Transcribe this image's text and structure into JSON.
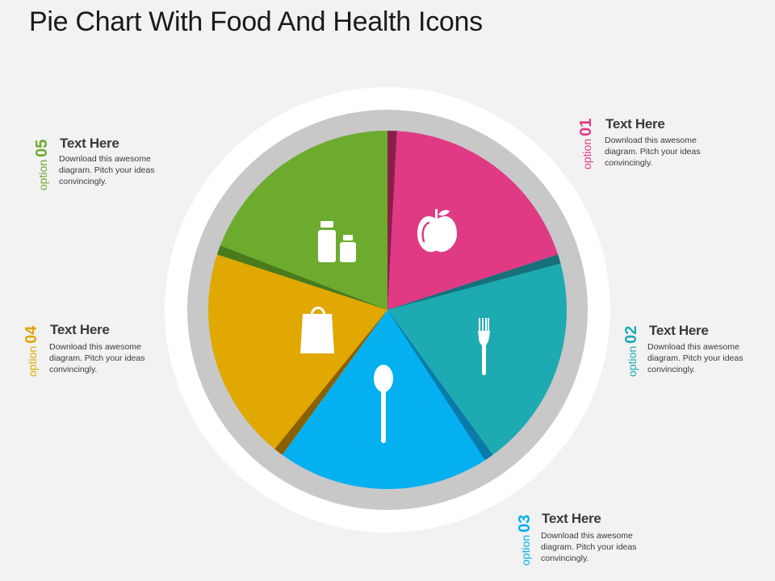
{
  "title": "Pie Chart With Food And Health Icons",
  "colors": {
    "background": "#f2f2f2",
    "ring_outer": "#ffffff",
    "ring_inner": "#c8c8c8",
    "icon": "#ffffff"
  },
  "slices": [
    {
      "id": "01",
      "color": "#e03a84",
      "shade": "#8b1f4c",
      "icon": "apple-icon"
    },
    {
      "id": "02",
      "color": "#1eaab1",
      "shade": "#17707a",
      "icon": "fork-icon"
    },
    {
      "id": "03",
      "color": "#04b0ef",
      "shade": "#0a7aa8",
      "icon": "spoon-icon"
    },
    {
      "id": "04",
      "color": "#e0a800",
      "shade": "#8a6000",
      "icon": "shopping-bag-icon"
    },
    {
      "id": "05",
      "color": "#6dab2f",
      "shade": "#4a7a1d",
      "icon": "bottles-icon"
    }
  ],
  "options": [
    {
      "word": "option",
      "num": "01",
      "color": "#e03a84",
      "heading": "Text Here",
      "body": "Download this awesome diagram. Pitch your ideas convincingly."
    },
    {
      "word": "option",
      "num": "02",
      "color": "#1eaab1",
      "heading": "Text Here",
      "body": "Download this awesome diagram. Pitch your ideas convincingly."
    },
    {
      "word": "option",
      "num": "03",
      "color": "#04b0ef",
      "heading": "Text Here",
      "body": "Download this awesome diagram. Pitch your ideas convincingly."
    },
    {
      "word": "option",
      "num": "04",
      "color": "#e0a800",
      "heading": "Text Here",
      "body": "Download this awesome diagram. Pitch your ideas convincingly."
    },
    {
      "word": "option",
      "num": "05",
      "color": "#6dab2f",
      "heading": "Text Here",
      "body": "Download this awesome diagram. Pitch your ideas convincingly."
    }
  ]
}
